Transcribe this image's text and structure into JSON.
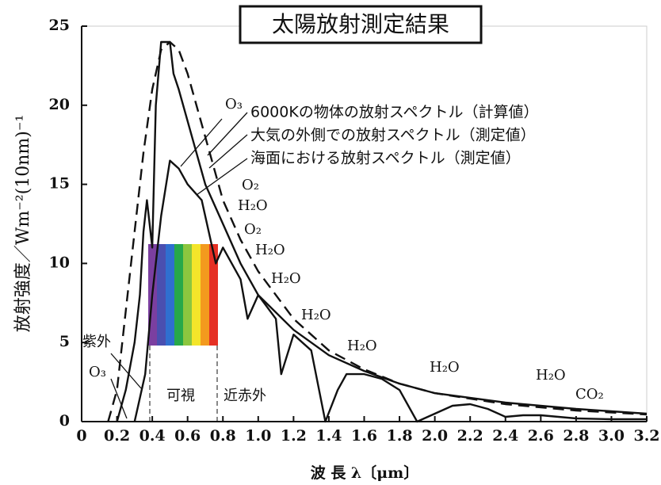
{
  "chart_data": {
    "type": "line",
    "title": "太陽放射測定結果",
    "y_label": "放射強度／Wm⁻²(10nm)⁻¹",
    "x_label": "波 長 λ〔μm〕",
    "xlim": [
      0,
      3.2
    ],
    "ylim": [
      0,
      25
    ],
    "xticks": [
      0,
      0.2,
      0.4,
      0.6,
      0.8,
      {
        "value": 1,
        "label": "1.0"
      },
      1.2,
      1.4,
      1.6,
      1.8,
      {
        "value": 2,
        "label": "2.0"
      },
      2.2,
      2.4,
      2.6,
      2.8,
      {
        "value": 3,
        "label": "3.0"
      },
      3.2
    ],
    "yticks": [
      0,
      5,
      10,
      15,
      20,
      25
    ],
    "series": [
      {
        "name": "6000Kの物体の放射スペクトル（計算値）",
        "color": "#111",
        "line_style": "dashed",
        "x": [
          0.15,
          0.2,
          0.25,
          0.3,
          0.35,
          0.4,
          0.45,
          0.5,
          0.55,
          0.6,
          0.7,
          0.8,
          0.9,
          1.0,
          1.2,
          1.4,
          1.6,
          1.8,
          2.0,
          2.4,
          2.8,
          3.2
        ],
        "values": [
          0,
          2,
          7,
          12,
          17,
          21,
          23.5,
          24,
          23.5,
          22,
          18,
          14,
          11.5,
          9.5,
          6.5,
          4.5,
          3.3,
          2.4,
          1.8,
          1.1,
          0.7,
          0.45
        ]
      },
      {
        "name": "大気の外側での放射スペクトル（測定値）",
        "color": "#111",
        "line_style": "solid",
        "x": [
          0.2,
          0.25,
          0.3,
          0.33,
          0.35,
          0.37,
          0.4,
          0.42,
          0.45,
          0.5,
          0.52,
          0.55,
          0.6,
          0.7,
          0.8,
          0.9,
          1.0,
          1.2,
          1.4,
          1.6,
          1.8,
          2.0,
          2.4,
          2.8,
          3.2
        ],
        "values": [
          0,
          2,
          5,
          8,
          12,
          14,
          11,
          20,
          24,
          24,
          22,
          21,
          19,
          15,
          12.5,
          10,
          8,
          5.8,
          4.2,
          3.2,
          2.4,
          1.8,
          1.2,
          0.8,
          0.5
        ]
      },
      {
        "name": "海面における放射スペクトル（測定値）",
        "color": "#111",
        "line_style": "solid",
        "x": [
          0.3,
          0.32,
          0.36,
          0.4,
          0.45,
          0.5,
          0.55,
          0.6,
          0.68,
          0.72,
          0.76,
          0.8,
          0.9,
          0.94,
          1.0,
          1.1,
          1.13,
          1.2,
          1.3,
          1.38,
          1.45,
          1.5,
          1.6,
          1.7,
          1.8,
          1.9,
          2.0,
          2.1,
          2.2,
          2.3,
          2.4,
          2.5,
          2.6,
          2.7,
          2.8,
          3.0,
          3.2
        ],
        "values": [
          0,
          1,
          3,
          8,
          13,
          16.5,
          16,
          15,
          14,
          12,
          10,
          11,
          9,
          6.5,
          8,
          6.5,
          3,
          5.5,
          4.5,
          0,
          2,
          3,
          3,
          2.7,
          2,
          0,
          0.5,
          1,
          1.1,
          0.8,
          0.3,
          0.4,
          0.4,
          0.3,
          0.2,
          0.15,
          0.15
        ]
      }
    ],
    "annotations": [
      "O₃",
      "O₂",
      "H₂O",
      "O₂",
      "H₂O",
      "H₂O",
      "H₂O",
      "H₂O",
      "H₂O",
      "H₂O",
      "CO₂",
      "紫外",
      "O₃",
      "可視",
      "近赤外"
    ]
  }
}
